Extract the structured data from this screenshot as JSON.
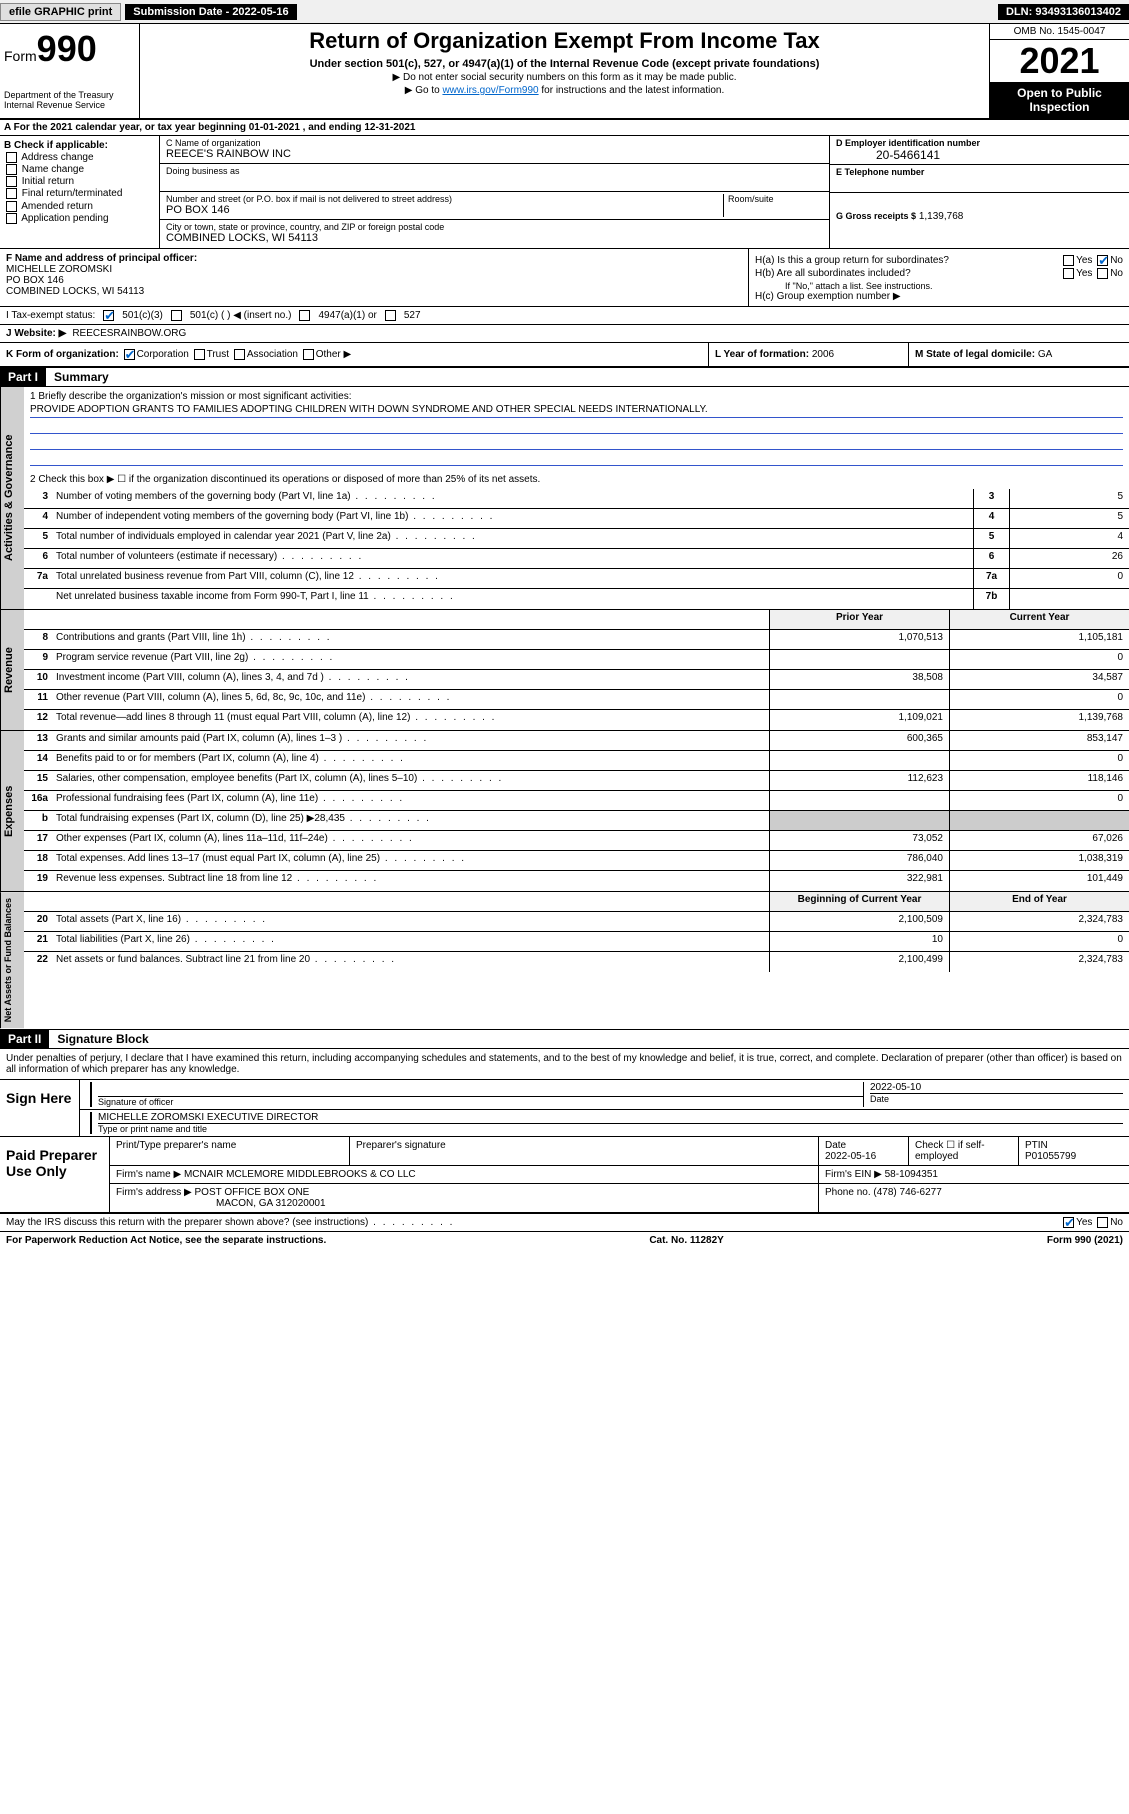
{
  "topbar": {
    "efile": "efile GRAPHIC print",
    "sub_label": "Submission Date - 2022-05-16",
    "dln": "DLN: 93493136013402"
  },
  "header": {
    "form_prefix": "Form",
    "form_num": "990",
    "dept": "Department of the Treasury\nInternal Revenue Service",
    "title": "Return of Organization Exempt From Income Tax",
    "subtitle": "Under section 501(c), 527, or 4947(a)(1) of the Internal Revenue Code (except private foundations)",
    "note1": "▶ Do not enter social security numbers on this form as it may be made public.",
    "note2_pre": "▶ Go to ",
    "note2_link": "www.irs.gov/Form990",
    "note2_post": " for instructions and the latest information.",
    "omb": "OMB No. 1545-0047",
    "year": "2021",
    "open": "Open to Public Inspection"
  },
  "row_a": "A For the 2021 calendar year, or tax year beginning 01-01-2021   , and ending 12-31-2021",
  "section_b": {
    "title": "B Check if applicable:",
    "opts": [
      "Address change",
      "Name change",
      "Initial return",
      "Final return/terminated",
      "Amended return",
      "Application pending"
    ]
  },
  "section_c": {
    "name_label": "C Name of organization",
    "name": "REECE'S RAINBOW INC",
    "dba_label": "Doing business as",
    "dba": "",
    "addr_label": "Number and street (or P.O. box if mail is not delivered to street address)",
    "room_label": "Room/suite",
    "addr": "PO BOX 146",
    "city_label": "City or town, state or province, country, and ZIP or foreign postal code",
    "city": "COMBINED LOCKS, WI  54113"
  },
  "section_d": {
    "label": "D Employer identification number",
    "val": "20-5466141"
  },
  "section_e": {
    "label": "E Telephone number",
    "val": ""
  },
  "section_g": {
    "label": "G Gross receipts $",
    "val": "1,139,768"
  },
  "section_f": {
    "label": "F Name and address of principal officer:",
    "name": "MICHELLE ZOROMSKI",
    "addr1": "PO BOX 146",
    "addr2": "COMBINED LOCKS, WI  54113"
  },
  "section_h": {
    "ha": "H(a)  Is this a group return for subordinates?",
    "hb": "H(b)  Are all subordinates included?",
    "hb_note": "If \"No,\" attach a list. See instructions.",
    "hc": "H(c)  Group exemption number ▶",
    "yes": "Yes",
    "no": "No"
  },
  "row_i": {
    "label": "I   Tax-exempt status:",
    "o1": "501(c)(3)",
    "o2": "501(c) (  ) ◀ (insert no.)",
    "o3": "4947(a)(1) or",
    "o4": "527"
  },
  "row_j": {
    "label": "J   Website: ▶",
    "val": "REECESRAINBOW.ORG"
  },
  "row_k": {
    "label": "K Form of organization:",
    "o1": "Corporation",
    "o2": "Trust",
    "o3": "Association",
    "o4": "Other ▶"
  },
  "row_l": {
    "label": "L Year of formation:",
    "val": "2006"
  },
  "row_m": {
    "label": "M State of legal domicile:",
    "val": "GA"
  },
  "part1": {
    "header": "Part I",
    "title": "Summary"
  },
  "governance": {
    "tab": "Activities & Governance",
    "l1_label": "1  Briefly describe the organization's mission or most significant activities:",
    "l1_val": "PROVIDE ADOPTION GRANTS TO FAMILIES ADOPTING CHILDREN WITH DOWN SYNDROME AND OTHER SPECIAL NEEDS INTERNATIONALLY.",
    "l2": "2   Check this box ▶ ☐  if the organization discontinued its operations or disposed of more than 25% of its net assets.",
    "rows": [
      {
        "n": "3",
        "d": "Number of voting members of the governing body (Part VI, line 1a)",
        "box": "3",
        "v": "5"
      },
      {
        "n": "4",
        "d": "Number of independent voting members of the governing body (Part VI, line 1b)",
        "box": "4",
        "v": "5"
      },
      {
        "n": "5",
        "d": "Total number of individuals employed in calendar year 2021 (Part V, line 2a)",
        "box": "5",
        "v": "4"
      },
      {
        "n": "6",
        "d": "Total number of volunteers (estimate if necessary)",
        "box": "6",
        "v": "26"
      },
      {
        "n": "7a",
        "d": "Total unrelated business revenue from Part VIII, column (C), line 12",
        "box": "7a",
        "v": "0"
      },
      {
        "n": "",
        "d": "Net unrelated business taxable income from Form 990-T, Part I, line 11",
        "box": "7b",
        "v": ""
      }
    ]
  },
  "revenue": {
    "tab": "Revenue",
    "header_prior": "Prior Year",
    "header_curr": "Current Year",
    "rows": [
      {
        "n": "8",
        "d": "Contributions and grants (Part VIII, line 1h)",
        "p": "1,070,513",
        "c": "1,105,181"
      },
      {
        "n": "9",
        "d": "Program service revenue (Part VIII, line 2g)",
        "p": "",
        "c": "0"
      },
      {
        "n": "10",
        "d": "Investment income (Part VIII, column (A), lines 3, 4, and 7d )",
        "p": "38,508",
        "c": "34,587"
      },
      {
        "n": "11",
        "d": "Other revenue (Part VIII, column (A), lines 5, 6d, 8c, 9c, 10c, and 11e)",
        "p": "",
        "c": "0"
      },
      {
        "n": "12",
        "d": "Total revenue—add lines 8 through 11 (must equal Part VIII, column (A), line 12)",
        "p": "1,109,021",
        "c": "1,139,768"
      }
    ]
  },
  "expenses": {
    "tab": "Expenses",
    "rows": [
      {
        "n": "13",
        "d": "Grants and similar amounts paid (Part IX, column (A), lines 1–3 )",
        "p": "600,365",
        "c": "853,147"
      },
      {
        "n": "14",
        "d": "Benefits paid to or for members (Part IX, column (A), line 4)",
        "p": "",
        "c": "0"
      },
      {
        "n": "15",
        "d": "Salaries, other compensation, employee benefits (Part IX, column (A), lines 5–10)",
        "p": "112,623",
        "c": "118,146"
      },
      {
        "n": "16a",
        "d": "Professional fundraising fees (Part IX, column (A), line 11e)",
        "p": "",
        "c": "0"
      },
      {
        "n": "b",
        "d": "Total fundraising expenses (Part IX, column (D), line 25) ▶28,435",
        "p": "grey",
        "c": "grey"
      },
      {
        "n": "17",
        "d": "Other expenses (Part IX, column (A), lines 11a–11d, 11f–24e)",
        "p": "73,052",
        "c": "67,026"
      },
      {
        "n": "18",
        "d": "Total expenses. Add lines 13–17 (must equal Part IX, column (A), line 25)",
        "p": "786,040",
        "c": "1,038,319"
      },
      {
        "n": "19",
        "d": "Revenue less expenses. Subtract line 18 from line 12",
        "p": "322,981",
        "c": "101,449"
      }
    ]
  },
  "netassets": {
    "tab": "Net Assets or Fund Balances",
    "header_prior": "Beginning of Current Year",
    "header_curr": "End of Year",
    "rows": [
      {
        "n": "20",
        "d": "Total assets (Part X, line 16)",
        "p": "2,100,509",
        "c": "2,324,783"
      },
      {
        "n": "21",
        "d": "Total liabilities (Part X, line 26)",
        "p": "10",
        "c": "0"
      },
      {
        "n": "22",
        "d": "Net assets or fund balances. Subtract line 21 from line 20",
        "p": "2,100,499",
        "c": "2,324,783"
      }
    ]
  },
  "part2": {
    "header": "Part II",
    "title": "Signature Block"
  },
  "sig": {
    "decl": "Under penalties of perjury, I declare that I have examined this return, including accompanying schedules and statements, and to the best of my knowledge and belief, it is true, correct, and complete. Declaration of preparer (other than officer) is based on all information of which preparer has any knowledge.",
    "sign_here": "Sign Here",
    "sig_label": "Signature of officer",
    "date_label": "Date",
    "date_val": "2022-05-10",
    "name_label": "Type or print name and title",
    "name_val": "MICHELLE ZOROMSKI  EXECUTIVE DIRECTOR"
  },
  "paid": {
    "title": "Paid Preparer Use Only",
    "h1": "Print/Type preparer's name",
    "h2": "Preparer's signature",
    "h3": "Date",
    "h3v": "2022-05-16",
    "h4": "Check ☐ if self-employed",
    "h5": "PTIN",
    "h5v": "P01055799",
    "firm_label": "Firm's name    ▶",
    "firm": "MCNAIR MCLEMORE MIDDLEBROOKS & CO LLC",
    "ein_label": "Firm's EIN ▶",
    "ein": "58-1094351",
    "addr_label": "Firm's address ▶",
    "addr1": "POST OFFICE BOX ONE",
    "addr2": "MACON, GA  312020001",
    "phone_label": "Phone no.",
    "phone": "(478) 746-6277"
  },
  "footer": {
    "discuss": "May the IRS discuss this return with the preparer shown above? (see instructions)",
    "yes": "Yes",
    "no": "No",
    "pra": "For Paperwork Reduction Act Notice, see the separate instructions.",
    "cat": "Cat. No. 11282Y",
    "form": "Form 990 (2021)"
  },
  "colors": {
    "link": "#0066cc",
    "black": "#000000",
    "grey_bg": "#cccccc",
    "tab_bg": "#d0d0d0",
    "underline": "#3355cc"
  }
}
